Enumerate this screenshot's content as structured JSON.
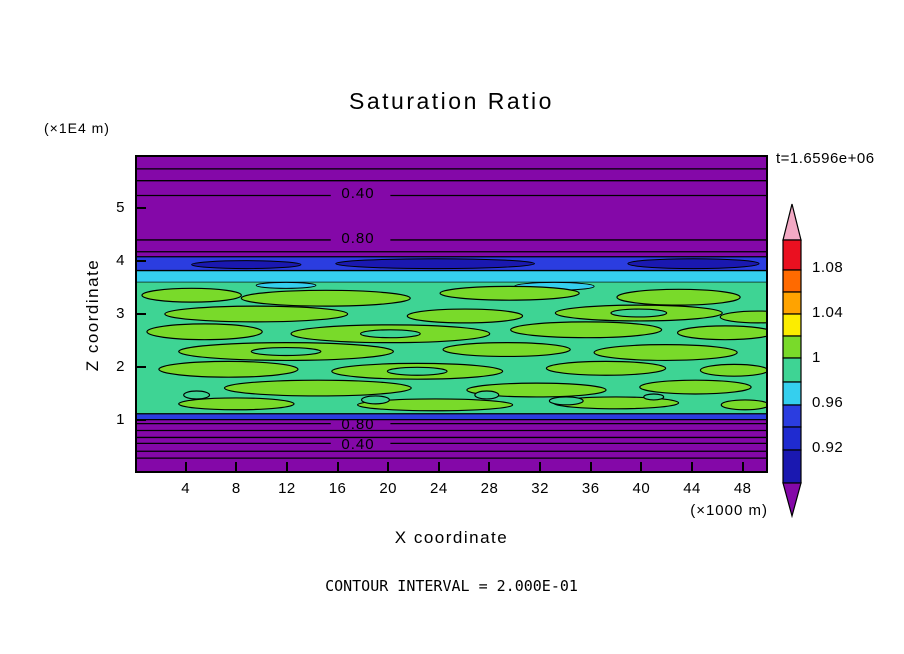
{
  "chart_data": {
    "type": "contour",
    "title": "Saturation Ratio",
    "xlabel": "X coordinate",
    "ylabel": "Z coordinate",
    "x_axis_unit": "(×1000 m)",
    "y_axis_unit": "(×1E4 m)",
    "time_annotation": "t=1.6596e+06",
    "footer": "CONTOUR INTERVAL = 2.000E-01",
    "contour_interval": 0.2,
    "xlim": [
      0,
      50
    ],
    "ylim": [
      0,
      6
    ],
    "x_ticks": [
      4,
      8,
      12,
      16,
      20,
      24,
      28,
      32,
      36,
      40,
      44,
      48
    ],
    "y_ticks": [
      1,
      2,
      3,
      4,
      5
    ],
    "contour_line_labels": [
      {
        "value": "0.40",
        "position": "upper"
      },
      {
        "value": "0.80",
        "position": "upper"
      },
      {
        "value": "0.80",
        "position": "lower"
      },
      {
        "value": "0.40",
        "position": "lower"
      }
    ],
    "colorbar": {
      "tick_labels": [
        "1.08",
        "1.04",
        "1",
        "0.96",
        "0.92"
      ],
      "tick_values": [
        1.08,
        1.04,
        1,
        0.96,
        0.92
      ],
      "segment_colors_top_to_bottom": [
        "#f2a9c4",
        "#ea1020",
        "#ff6a00",
        "#ffa300",
        "#fced00",
        "#79da2a",
        "#3ed494",
        "#35cfee",
        "#2b3de0",
        "#1f2bd0",
        "#1a18b0",
        "#8408a8"
      ]
    },
    "colors": {
      "ambient": "#8408a8",
      "band_low": "#3ed494",
      "band_high": "#79da2a",
      "cyan_layer": "#35cfee",
      "blue_layer": "#2b3de0",
      "dark_blue_layer": "#1a18b0"
    },
    "field_summary": {
      "upper_ambient": "saturation ratio < 0.9 (purple) above z ≈ 4×1E4 m, labeled contours 0.40 and 0.80",
      "lower_ambient": "saturation ratio < 0.9 (purple) below z ≈ 1×1E4 m, labeled contours 0.80 and 0.40",
      "saturated_band": "saturation ratio ≈ 0.96–1.04 (teal/green mottled band) between z ≈ 1 and 4 ×1E4 m",
      "top_of_band": "thin blue (≈0.92) and cyan (≈0.96) layers at z ≈ 4×1E4 m"
    }
  }
}
